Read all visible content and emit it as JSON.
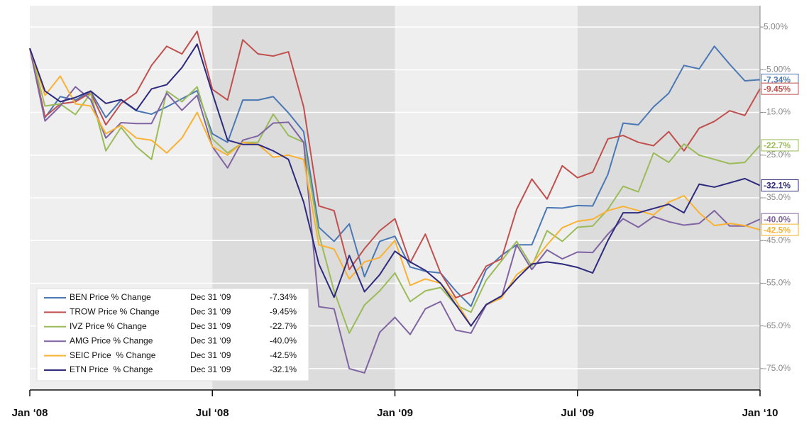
{
  "chart_data": {
    "type": "line",
    "x": [
      0,
      0.5,
      1,
      1.5,
      2,
      2.5,
      3,
      3.5,
      4,
      4.5,
      5,
      5.5,
      6,
      6.5,
      7,
      7.5,
      8,
      8.5,
      9,
      9.5,
      10,
      10.5,
      11,
      11.5,
      12,
      12.5,
      13,
      13.5,
      14,
      14.5,
      15,
      15.5,
      16,
      16.5,
      17,
      17.5,
      18,
      18.5,
      19,
      19.5,
      20,
      20.5,
      21,
      21.5,
      22,
      22.5,
      23,
      23.5,
      24
    ],
    "xlim": [
      0,
      24
    ],
    "xticks": [
      {
        "value": 0,
        "label": "Jan ‘08"
      },
      {
        "value": 6,
        "label": "Jul ‘08"
      },
      {
        "value": 12,
        "label": "Jan ‘09"
      },
      {
        "value": 18,
        "label": "Jul ‘09"
      },
      {
        "value": 24,
        "label": "Jan ‘10"
      }
    ],
    "ylim": [
      -80,
      10
    ],
    "yticks": [
      {
        "value": 5,
        "label": "5.00%"
      },
      {
        "value": -5,
        "label": "-5.00%"
      },
      {
        "value": -15,
        "label": "-15.0%"
      },
      {
        "value": -25,
        "label": "-25.0%"
      },
      {
        "value": -35,
        "label": "-35.0%"
      },
      {
        "value": -45,
        "label": "-45.0%"
      },
      {
        "value": -55,
        "label": "-55.0%"
      },
      {
        "value": -65,
        "label": "-65.0%"
      },
      {
        "value": -75,
        "label": "-75.0%"
      }
    ],
    "grid": true,
    "legend_date": "Dec 31 ‘09",
    "series": [
      {
        "name": "BEN Price % Change",
        "color": "#4a78b5",
        "values": [
          0,
          -16.2,
          -11.3,
          -12.1,
          -10.1,
          -16.2,
          -12.1,
          -14.6,
          -15.4,
          -13.7,
          -11.8,
          -9.9,
          -20.0,
          -22.0,
          -12.1,
          -12.1,
          -11.3,
          -15.1,
          -19.5,
          -41.9,
          -45.2,
          -41.1,
          -53.5,
          -45.2,
          -44.0,
          -51.2,
          -52.2,
          -52.6,
          -56.8,
          -60.4,
          -51.8,
          -48.5,
          -46.0,
          -46.0,
          -37.3,
          -37.4,
          -36.8,
          -36.9,
          -29.5,
          -17.5,
          -17.9,
          -13.7,
          -10.5,
          -4.0,
          -4.8,
          0.5,
          -3.7,
          -7.6,
          -7.34
        ],
        "value_labels": [
          null,
          null,
          null,
          null,
          null,
          null,
          null,
          null,
          null,
          null,
          null,
          null,
          null,
          null,
          null,
          null,
          null,
          null,
          null,
          null,
          null,
          null,
          null,
          null,
          null,
          null,
          null,
          null,
          null,
          null,
          null,
          null,
          null,
          null,
          null,
          null,
          null,
          null,
          null,
          null,
          null,
          null,
          null,
          null,
          null,
          null,
          null,
          null,
          "-7.34%"
        ]
      },
      {
        "name": "TROW Price % Change",
        "color": "#c0504d",
        "values": [
          0,
          -16,
          -13,
          -12.5,
          -10.4,
          -17.9,
          -12.9,
          -10.4,
          -4,
          0.5,
          -1.3,
          4.0,
          -9.6,
          -12.1,
          2.0,
          -1.3,
          -1.8,
          -0.8,
          -13.7,
          -36.9,
          -38,
          -51.8,
          -46.9,
          -42.7,
          -39.9,
          -50.2,
          -43.5,
          -52.6,
          -58.4,
          -57.1,
          -51,
          -49.3,
          -37.7,
          -30.6,
          -35.3,
          -27.5,
          -30.3,
          -29.0,
          -21.2,
          -20.4,
          -22,
          -22.8,
          -19.5,
          -24,
          -18.7,
          -17.1,
          -14.6,
          -15.7,
          -9.45
        ],
        "value_labels": [
          null,
          null,
          null,
          null,
          null,
          null,
          null,
          null,
          null,
          null,
          null,
          null,
          null,
          null,
          null,
          null,
          null,
          null,
          null,
          null,
          null,
          null,
          null,
          null,
          null,
          null,
          null,
          null,
          null,
          null,
          null,
          null,
          null,
          null,
          null,
          null,
          null,
          null,
          null,
          null,
          null,
          null,
          null,
          null,
          null,
          null,
          null,
          null,
          "-9.45%"
        ]
      },
      {
        "name": "IVZ Price % Change",
        "color": "#9bbb59",
        "values": [
          0,
          -13.5,
          -13,
          -15.5,
          -10.5,
          -24,
          -18.5,
          -23,
          -26,
          -10,
          -12.5,
          -9,
          -21.2,
          -24.5,
          -22,
          -22,
          -15.4,
          -20.4,
          -22,
          -43.5,
          -56.8,
          -66.7,
          -60.1,
          -56.8,
          -52.6,
          -59.3,
          -56.8,
          -56,
          -60.1,
          -61.8,
          -54.3,
          -49.8,
          -45.2,
          -51,
          -42.7,
          -45.2,
          -41.9,
          -41.6,
          -37.7,
          -32.3,
          -33.6,
          -24.5,
          -26.7,
          -22.4,
          -25,
          -26,
          -27,
          -26.7,
          -22.7
        ],
        "value_labels": [
          null,
          null,
          null,
          null,
          null,
          null,
          null,
          null,
          null,
          null,
          null,
          null,
          null,
          null,
          null,
          null,
          null,
          null,
          null,
          null,
          null,
          null,
          null,
          null,
          null,
          null,
          null,
          null,
          null,
          null,
          null,
          null,
          null,
          null,
          null,
          null,
          null,
          null,
          null,
          null,
          null,
          null,
          null,
          null,
          null,
          null,
          null,
          null,
          "-22.7%"
        ]
      },
      {
        "name": "AMG Price % Change",
        "color": "#8064a2",
        "values": [
          0,
          -17,
          -13.5,
          -9,
          -12,
          -21,
          -17.4,
          -17.6,
          -17.6,
          -10.5,
          -14.5,
          -11,
          -23,
          -28,
          -21.5,
          -20.5,
          -17.5,
          -17.3,
          -22,
          -60.5,
          -61,
          -75,
          -76,
          -66.5,
          -63,
          -67,
          -61,
          -59.3,
          -66,
          -66.7,
          -60.1,
          -58.4,
          -46,
          -51.8,
          -47.2,
          -49.3,
          -47.7,
          -47.8,
          -43.5,
          -39.9,
          -41.9,
          -39.4,
          -40.6,
          -41.4,
          -41,
          -38,
          -41.6,
          -41.6,
          -40.0
        ],
        "value_labels": [
          null,
          null,
          null,
          null,
          null,
          null,
          null,
          null,
          null,
          null,
          null,
          null,
          null,
          null,
          null,
          null,
          null,
          null,
          null,
          null,
          null,
          null,
          null,
          null,
          null,
          null,
          null,
          null,
          null,
          null,
          null,
          null,
          null,
          null,
          null,
          null,
          null,
          null,
          null,
          null,
          null,
          null,
          null,
          null,
          null,
          null,
          null,
          null,
          "-40.0%"
        ]
      },
      {
        "name": "SEIC Price  % Change",
        "color": "#f9b233",
        "values": [
          0,
          -11,
          -6.5,
          -13,
          -13.5,
          -20,
          -18,
          -21,
          -21.5,
          -24.5,
          -21,
          -15,
          -23,
          -25,
          -22,
          -22.5,
          -25.5,
          -25,
          -26,
          -46,
          -47,
          -54,
          -50,
          -49,
          -45,
          -55.5,
          -54,
          -55,
          -59,
          -65,
          -60,
          -58.5,
          -53,
          -50.5,
          -46,
          -42,
          -40.5,
          -40,
          -38,
          -37,
          -38,
          -39,
          -36,
          -34.5,
          -38.5,
          -41.5,
          -41,
          -41.5,
          -42.5
        ],
        "value_labels": [
          null,
          null,
          null,
          null,
          null,
          null,
          null,
          null,
          null,
          null,
          null,
          null,
          null,
          null,
          null,
          null,
          null,
          null,
          null,
          null,
          null,
          null,
          null,
          null,
          null,
          null,
          null,
          null,
          null,
          null,
          null,
          null,
          null,
          null,
          null,
          null,
          null,
          null,
          null,
          null,
          null,
          null,
          null,
          null,
          null,
          null,
          null,
          null,
          "-42.5%"
        ]
      },
      {
        "name": "ETN Price  % Change",
        "color": "#2e2a7e",
        "values": [
          0,
          -10,
          -12.5,
          -11.5,
          -10,
          -12.9,
          -12,
          -14.5,
          -9.5,
          -8.5,
          -4.5,
          1,
          -10.5,
          -21.5,
          -22.5,
          -22.5,
          -24,
          -26,
          -36,
          -50.5,
          -58.3,
          -48.5,
          -57,
          -53,
          -47.5,
          -50,
          -52,
          -55,
          -60,
          -65,
          -60,
          -58,
          -54,
          -50.5,
          -50,
          -50.5,
          -51.3,
          -52.6,
          -45,
          -38.5,
          -38.5,
          -37.5,
          -36.5,
          -38.5,
          -31.8,
          -32.5,
          -31.5,
          -30.5,
          -32.1
        ],
        "value_labels": [
          null,
          null,
          null,
          null,
          null,
          null,
          null,
          null,
          null,
          null,
          null,
          null,
          null,
          null,
          null,
          null,
          null,
          null,
          null,
          null,
          null,
          null,
          null,
          null,
          null,
          null,
          null,
          null,
          null,
          null,
          null,
          null,
          null,
          null,
          null,
          null,
          null,
          null,
          null,
          null,
          null,
          null,
          null,
          null,
          null,
          null,
          null,
          null,
          "-32.1%"
        ]
      }
    ]
  }
}
